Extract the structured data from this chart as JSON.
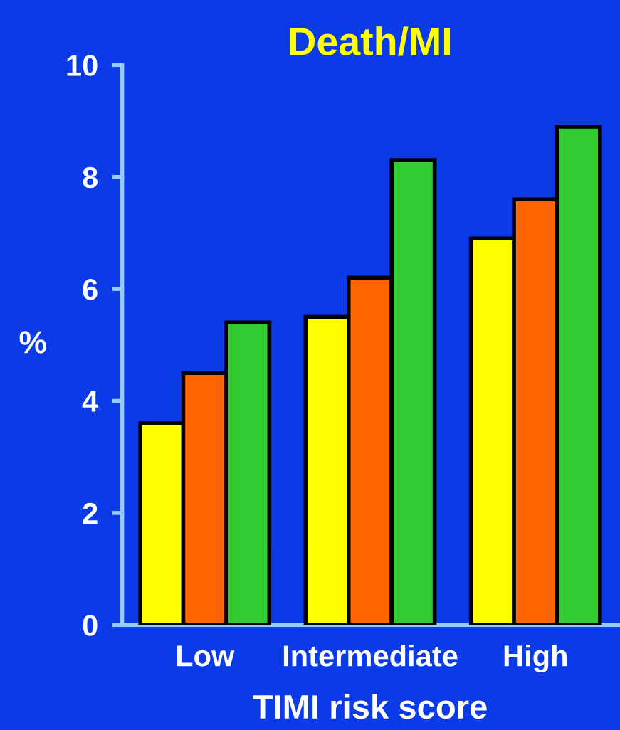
{
  "chart_data": {
    "type": "bar",
    "title": "Death/MI",
    "xlabel": "TIMI risk score",
    "ylabel": "%",
    "categories": [
      "Low",
      "Intermediate",
      "High"
    ],
    "series": [
      {
        "color": "#ffff00",
        "values": [
          3.6,
          5.5,
          6.9
        ]
      },
      {
        "color": "#ff6600",
        "values": [
          4.5,
          6.2,
          7.6
        ]
      },
      {
        "color": "#33cc33",
        "values": [
          5.4,
          8.3,
          8.9
        ]
      }
    ],
    "ylim": [
      0,
      10
    ],
    "yticks": [
      0,
      2,
      4,
      6,
      8,
      10
    ],
    "grid": false
  }
}
